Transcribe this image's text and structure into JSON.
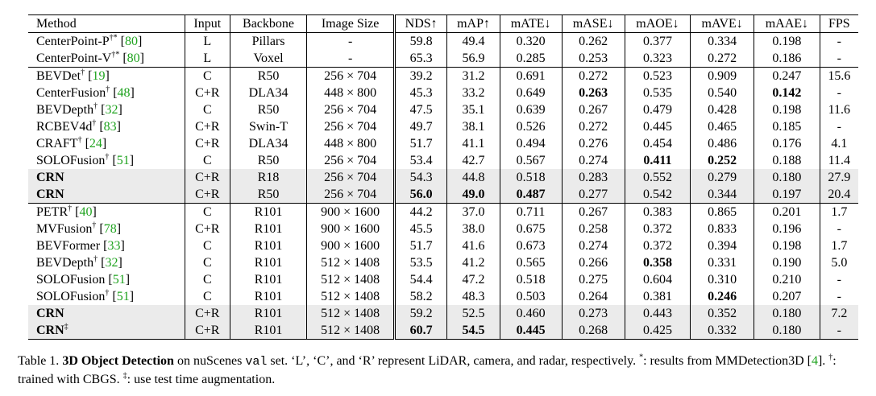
{
  "columns": [
    "Method",
    "Input",
    "Backbone",
    "Image Size",
    "NDS↑",
    "mAP↑",
    "mATE↓",
    "mASE↓",
    "mAOE↓",
    "mAVE↓",
    "mAAE↓",
    "FPS"
  ],
  "groups": [
    [
      {
        "name": "CenterPoint-P",
        "sup": "†*",
        "ref": "80",
        "cells": [
          "L",
          "Pillars",
          "-",
          "59.8",
          "49.4",
          "0.320",
          "0.262",
          "0.377",
          "0.334",
          "0.198",
          "-"
        ]
      },
      {
        "name": "CenterPoint-V",
        "sup": "†*",
        "ref": "80",
        "cells": [
          "L",
          "Voxel",
          "-",
          "65.3",
          "56.9",
          "0.285",
          "0.253",
          "0.323",
          "0.272",
          "0.186",
          "-"
        ]
      }
    ],
    [
      {
        "name": "BEVDet",
        "sup": "†",
        "ref": "19",
        "cells": [
          "C",
          "R50",
          "256 × 704",
          "39.2",
          "31.2",
          "0.691",
          "0.272",
          "0.523",
          "0.909",
          "0.247",
          "15.6"
        ]
      },
      {
        "name": "CenterFusion",
        "sup": "†",
        "ref": "48",
        "cells": [
          "C+R",
          "DLA34",
          "448 × 800",
          "45.3",
          "33.2",
          "0.649",
          "0.263",
          "0.535",
          "0.540",
          "0.142",
          "-"
        ],
        "bold": [
          7,
          10
        ]
      },
      {
        "name": "BEVDepth",
        "sup": "†",
        "ref": "32",
        "cells": [
          "C",
          "R50",
          "256 × 704",
          "47.5",
          "35.1",
          "0.639",
          "0.267",
          "0.479",
          "0.428",
          "0.198",
          "11.6"
        ]
      },
      {
        "name": "RCBEV4d",
        "sup": "†",
        "ref": "83",
        "cells": [
          "C+R",
          "Swin-T",
          "256 × 704",
          "49.7",
          "38.1",
          "0.526",
          "0.272",
          "0.445",
          "0.465",
          "0.185",
          "-"
        ]
      },
      {
        "name": "CRAFT",
        "sup": "†",
        "ref": "24",
        "cells": [
          "C+R",
          "DLA34",
          "448 × 800",
          "51.7",
          "41.1",
          "0.494",
          "0.276",
          "0.454",
          "0.486",
          "0.176",
          "4.1"
        ]
      },
      {
        "name": "SOLOFusion",
        "sup": "†",
        "ref": "51",
        "cells": [
          "C",
          "R50",
          "256 × 704",
          "53.4",
          "42.7",
          "0.567",
          "0.274",
          "0.411",
          "0.252",
          "0.188",
          "11.4"
        ],
        "bold": [
          8,
          9
        ]
      },
      {
        "name": "CRN",
        "sup": "",
        "ref": "",
        "ours": true,
        "cells": [
          "C+R",
          "R18",
          "256 × 704",
          "54.3",
          "44.8",
          "0.518",
          "0.283",
          "0.552",
          "0.279",
          "0.180",
          "27.9"
        ],
        "bold": [
          0,
          12
        ]
      },
      {
        "name": "CRN",
        "sup": "",
        "ref": "",
        "ours": true,
        "cells": [
          "C+R",
          "R50",
          "256 × 704",
          "56.0",
          "49.0",
          "0.487",
          "0.277",
          "0.542",
          "0.344",
          "0.197",
          "20.4"
        ],
        "bold": [
          0,
          4,
          5,
          6
        ]
      }
    ],
    [
      {
        "name": "PETR",
        "sup": "†",
        "ref": "40",
        "cells": [
          "C",
          "R101",
          "900 × 1600",
          "44.2",
          "37.0",
          "0.711",
          "0.267",
          "0.383",
          "0.865",
          "0.201",
          "1.7"
        ]
      },
      {
        "name": "MVFusion",
        "sup": "†",
        "ref": "78",
        "cells": [
          "C+R",
          "R101",
          "900 × 1600",
          "45.5",
          "38.0",
          "0.675",
          "0.258",
          "0.372",
          "0.833",
          "0.196",
          "-"
        ]
      },
      {
        "name": "BEVFormer",
        "sup": "",
        "ref": "33",
        "cells": [
          "C",
          "R101",
          "900 × 1600",
          "51.7",
          "41.6",
          "0.673",
          "0.274",
          "0.372",
          "0.394",
          "0.198",
          "1.7"
        ]
      },
      {
        "name": "BEVDepth",
        "sup": "†",
        "ref": "32",
        "cells": [
          "C",
          "R101",
          "512 × 1408",
          "53.5",
          "41.2",
          "0.565",
          "0.266",
          "0.358",
          "0.331",
          "0.190",
          "5.0"
        ],
        "bold": [
          8
        ]
      },
      {
        "name": "SOLOFusion",
        "sup": "",
        "ref": "51",
        "cells": [
          "C",
          "R101",
          "512 × 1408",
          "54.4",
          "47.2",
          "0.518",
          "0.275",
          "0.604",
          "0.310",
          "0.210",
          "-"
        ]
      },
      {
        "name": "SOLOFusion",
        "sup": "†",
        "ref": "51",
        "cells": [
          "C",
          "R101",
          "512 × 1408",
          "58.2",
          "48.3",
          "0.503",
          "0.264",
          "0.381",
          "0.246",
          "0.207",
          "-"
        ],
        "bold": [
          9
        ]
      },
      {
        "name": "CRN",
        "sup": "",
        "ref": "",
        "ours": true,
        "cells": [
          "C+R",
          "R101",
          "512 × 1408",
          "59.2",
          "52.5",
          "0.460",
          "0.273",
          "0.443",
          "0.352",
          "0.180",
          "7.2"
        ],
        "bold": [
          0,
          12
        ]
      },
      {
        "name": "CRN",
        "sup": "‡",
        "ref": "",
        "ours": true,
        "cells": [
          "C+R",
          "R101",
          "512 × 1408",
          "60.7",
          "54.5",
          "0.445",
          "0.268",
          "0.425",
          "0.332",
          "0.180",
          "-"
        ],
        "bold": [
          0,
          4,
          5,
          6
        ]
      }
    ]
  ],
  "caption": {
    "label": "Table 1.",
    "bold_title": "3D Object Detection",
    "t1": " on nuScenes ",
    "code": "val",
    "t2": " set. ‘L’, ‘C’, and ‘R’ represent LiDAR, camera, and radar, respectively. ",
    "sup1": "*",
    "t3": ": results from MMDetection3D [",
    "ref": "4",
    "t4": "]. ",
    "sup2": "†",
    "t5": ": trained with CBGS. ",
    "sup3": "‡",
    "t6": ": use test time augmentation."
  }
}
